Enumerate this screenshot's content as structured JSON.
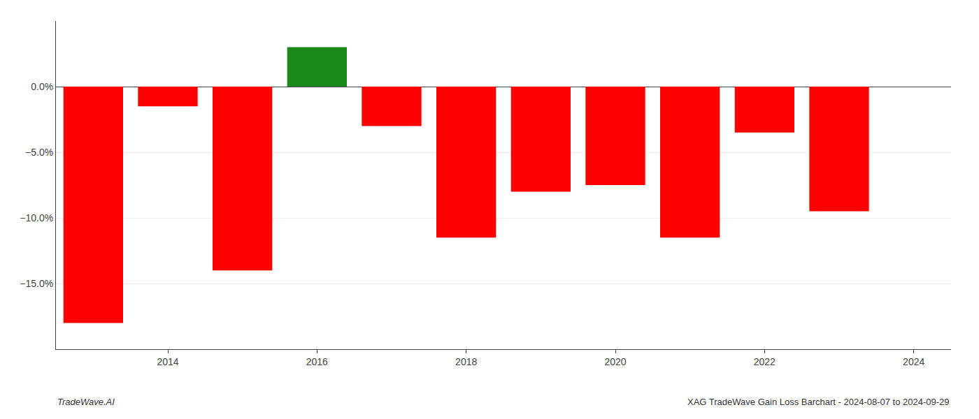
{
  "chart_data": {
    "type": "bar",
    "x": [
      2013,
      2014,
      2015,
      2016,
      2017,
      2018,
      2019,
      2020,
      2021,
      2022,
      2023
    ],
    "values": [
      -18.0,
      -1.5,
      -14.0,
      3.0,
      -3.0,
      -11.5,
      -8.0,
      -7.5,
      -11.5,
      -3.5,
      -9.5
    ],
    "colors": [
      "#ff0000",
      "#ff0000",
      "#ff0000",
      "#1a8a1a",
      "#ff0000",
      "#ff0000",
      "#ff0000",
      "#ff0000",
      "#ff0000",
      "#ff0000",
      "#ff0000"
    ],
    "xlim": [
      2012.5,
      2024.5
    ],
    "xticks": [
      2014,
      2016,
      2018,
      2020,
      2022,
      2024
    ],
    "ylim": [
      -20,
      5
    ],
    "yticks": [
      {
        "value": 0.0,
        "label": "0.0%"
      },
      {
        "value": -5.0,
        "label": "−5.0%"
      },
      {
        "value": -10.0,
        "label": "−10.0%"
      },
      {
        "value": -15.0,
        "label": "−15.0%"
      }
    ],
    "grid": true,
    "annotations": [
      "TradeWave.AI",
      "XAG TradeWave Gain Loss Barchart - 2024-08-07 to 2024-09-29"
    ]
  }
}
